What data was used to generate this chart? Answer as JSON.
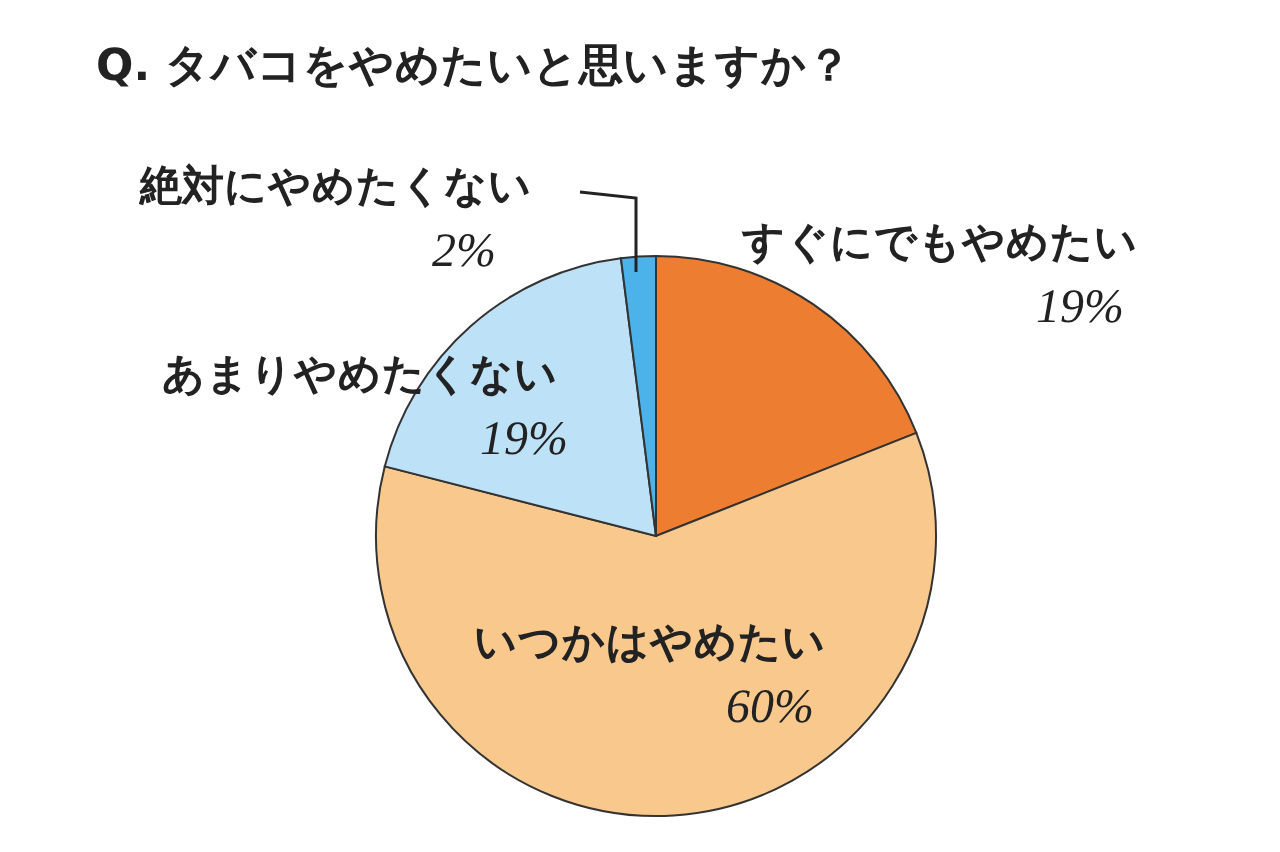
{
  "chart_data": {
    "type": "pie",
    "title": "Q. タバコをやめたいと思いますか？",
    "categories": [
      "すぐにでもやめたい",
      "いつかはやめたい",
      "あまりやめたくない",
      "絶対にやめたくない"
    ],
    "values": [
      19,
      60,
      19,
      2
    ],
    "colors": [
      "#ed7d31",
      "#f8c88d",
      "#bde1f7",
      "#4cb3ea"
    ],
    "value_labels": [
      "19%",
      "60%",
      "19%",
      "2%"
    ],
    "legend": false
  }
}
